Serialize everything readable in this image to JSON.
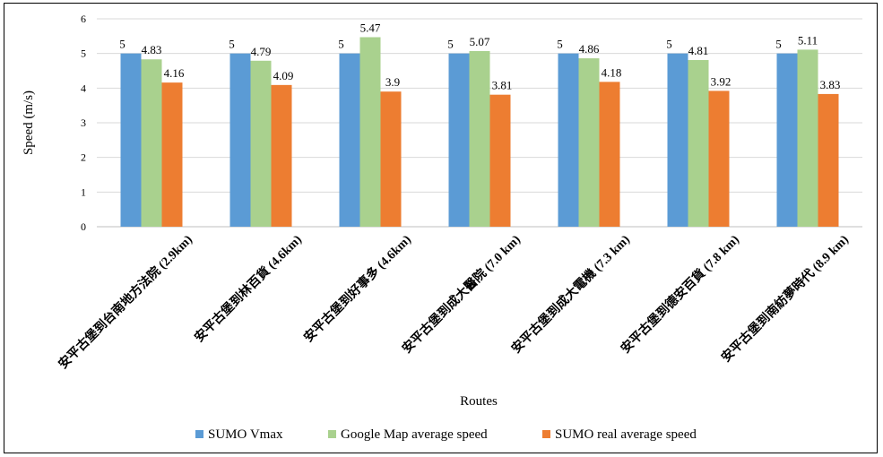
{
  "chart_data": {
    "type": "bar",
    "xlabel": "Routes",
    "ylabel": "Speed (m/s)",
    "ylim": [
      0,
      6
    ],
    "yticks": [
      0,
      1,
      2,
      3,
      4,
      5,
      6
    ],
    "grid": true,
    "legend_position": "bottom",
    "categories": [
      "安平古堡到台南地方法院 (2.9km)",
      "安平古堡到林百貨 (4.6km)",
      "安平古堡到好事多 (4.6km)",
      "安平古堡到成大醫院 (7.0 km)",
      "安平古堡到成大電機 (7.3 km)",
      "安平古堡到德安百貨 (7.8 km)",
      "安平古堡到南紡夢時代 (8.9 km)"
    ],
    "series": [
      {
        "name": "SUMO Vmax",
        "color": "#5B9BD5",
        "values": [
          5,
          5,
          5,
          5,
          5,
          5,
          5
        ]
      },
      {
        "name": "Google Map average speed",
        "color": "#A9D18E",
        "values": [
          4.83,
          4.79,
          5.47,
          5.07,
          4.86,
          4.81,
          5.11
        ]
      },
      {
        "name": "SUMO real average speed",
        "color": "#ED7D31",
        "values": [
          4.16,
          4.09,
          3.9,
          3.81,
          4.18,
          3.92,
          3.83
        ]
      }
    ]
  }
}
